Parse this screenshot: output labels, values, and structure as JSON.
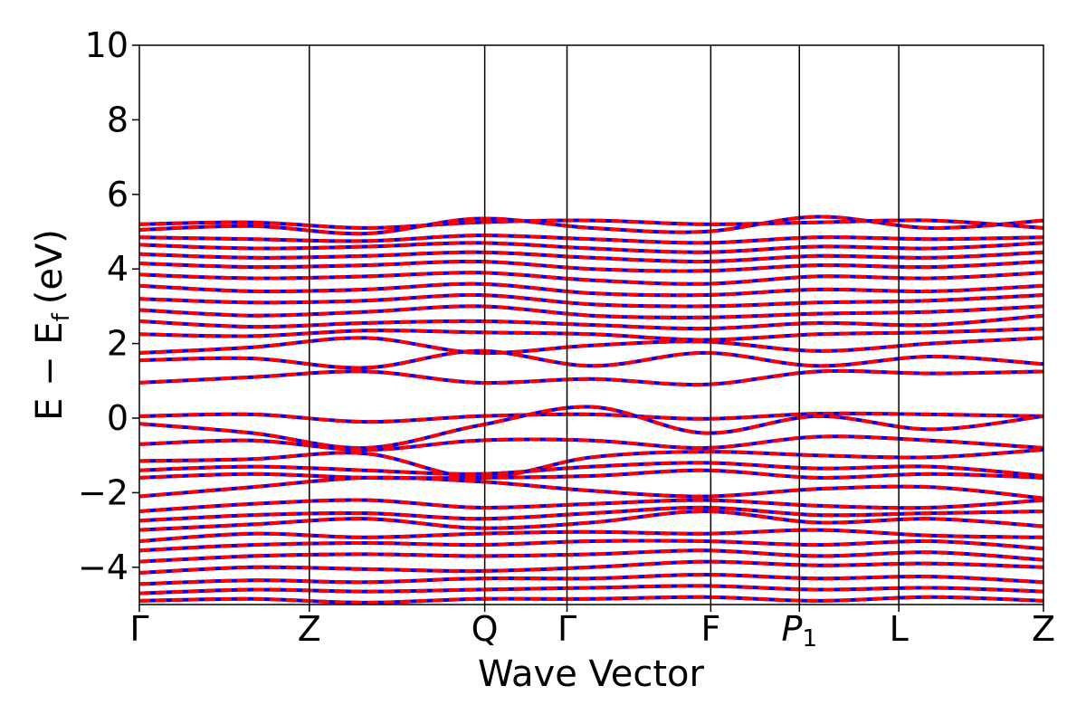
{
  "chart_data": {
    "type": "line",
    "xlabel": "Wave Vector",
    "ylabel": "E − E",
    "ylabel_sub": "f",
    "ylabel_unit": "(eV)",
    "ylim": [
      -5,
      10
    ],
    "yticks": [
      -4,
      -2,
      0,
      2,
      4,
      6,
      8,
      10
    ],
    "ytick_labels": [
      "−4",
      "−2",
      "0",
      "2",
      "4",
      "6",
      "8",
      "10"
    ],
    "xlim": [
      0,
      1
    ],
    "kpoints": [
      {
        "label": "Γ",
        "sub": "",
        "italic": false,
        "x": 0.0
      },
      {
        "label": "Z",
        "sub": "",
        "italic": false,
        "x": 0.188
      },
      {
        "label": "Q",
        "sub": "",
        "italic": false,
        "x": 0.382
      },
      {
        "label": "Γ",
        "sub": "",
        "italic": false,
        "x": 0.473
      },
      {
        "label": "F",
        "sub": "",
        "italic": false,
        "x": 0.632
      },
      {
        "label": "P",
        "sub": "1",
        "italic": true,
        "x": 0.73
      },
      {
        "label": "L",
        "sub": "",
        "italic": false,
        "x": 0.84
      },
      {
        "label": "Z",
        "sub": "",
        "italic": false,
        "x": 1.0
      }
    ],
    "grid": false,
    "series_styles": [
      {
        "color": "#0000ff",
        "linestyle": "solid"
      },
      {
        "color": "#ff0000",
        "linestyle": "dashed"
      }
    ],
    "bands_valence": [
      [
        0.05,
        0.1,
        -0.1,
        0.05,
        0.1,
        -0.02,
        0.12,
        0.1,
        0.05
      ],
      [
        -0.15,
        -0.4,
        -0.8,
        -0.2,
        0.3,
        -0.4,
        0.05,
        -0.3,
        0.05
      ],
      [
        -0.7,
        -0.6,
        -0.85,
        -0.6,
        -0.6,
        -0.8,
        -0.5,
        -0.6,
        -0.8
      ],
      [
        -1.15,
        -1.1,
        -0.95,
        -1.6,
        -1.05,
        -0.9,
        -1.0,
        -1.05,
        -0.85
      ],
      [
        -1.4,
        -1.3,
        -1.4,
        -1.5,
        -1.3,
        -1.2,
        -1.35,
        -1.3,
        -1.55
      ],
      [
        -1.6,
        -1.5,
        -1.6,
        -1.6,
        -1.55,
        -1.4,
        -1.6,
        -1.5,
        -1.6
      ],
      [
        -2.1,
        -1.85,
        -1.6,
        -1.7,
        -1.95,
        -2.1,
        -1.9,
        -1.85,
        -2.15
      ],
      [
        -2.5,
        -2.3,
        -2.2,
        -2.4,
        -2.3,
        -2.2,
        -2.35,
        -2.4,
        -2.2
      ],
      [
        -2.75,
        -2.6,
        -2.55,
        -2.7,
        -2.55,
        -2.4,
        -2.6,
        -2.55,
        -2.5
      ],
      [
        -3.0,
        -2.85,
        -2.7,
        -2.95,
        -2.8,
        -2.5,
        -2.8,
        -2.7,
        -2.9
      ],
      [
        -3.3,
        -3.1,
        -3.2,
        -3.1,
        -3.05,
        -3.1,
        -3.0,
        -3.15,
        -3.2
      ],
      [
        -3.55,
        -3.4,
        -3.35,
        -3.4,
        -3.3,
        -3.3,
        -3.4,
        -3.3,
        -3.5
      ],
      [
        -3.85,
        -3.7,
        -3.65,
        -3.7,
        -3.65,
        -3.55,
        -3.7,
        -3.6,
        -3.8
      ],
      [
        -4.15,
        -4.0,
        -4.05,
        -4.1,
        -4.0,
        -3.85,
        -3.95,
        -3.9,
        -4.0
      ],
      [
        -4.45,
        -4.35,
        -4.4,
        -4.3,
        -4.3,
        -4.2,
        -4.3,
        -4.25,
        -4.4
      ],
      [
        -4.7,
        -4.6,
        -4.65,
        -4.6,
        -4.55,
        -4.5,
        -4.6,
        -4.55,
        -4.65
      ],
      [
        -4.9,
        -4.85,
        -4.95,
        -4.85,
        -4.85,
        -4.8,
        -4.9,
        -4.8,
        -4.9
      ]
    ],
    "bands_conduction": [
      [
        0.95,
        1.1,
        1.25,
        0.95,
        1.05,
        0.9,
        1.25,
        1.2,
        1.25
      ],
      [
        1.55,
        1.6,
        1.35,
        1.8,
        1.4,
        1.75,
        1.4,
        1.65,
        1.45
      ],
      [
        1.75,
        1.9,
        2.15,
        1.75,
        1.95,
        2.05,
        1.8,
        2.0,
        2.15
      ],
      [
        2.25,
        2.2,
        2.35,
        2.3,
        2.25,
        2.1,
        2.25,
        2.3,
        2.4
      ],
      [
        2.6,
        2.45,
        2.55,
        2.6,
        2.5,
        2.4,
        2.55,
        2.5,
        2.75
      ],
      [
        2.9,
        2.75,
        2.85,
        3.0,
        2.75,
        2.7,
        2.8,
        2.85,
        3.0
      ],
      [
        3.2,
        3.1,
        3.15,
        3.3,
        3.05,
        3.0,
        3.1,
        3.15,
        3.3
      ],
      [
        3.55,
        3.4,
        3.45,
        3.6,
        3.35,
        3.3,
        3.45,
        3.4,
        3.55
      ],
      [
        3.85,
        3.75,
        3.8,
        3.9,
        3.7,
        3.6,
        3.8,
        3.75,
        3.9
      ],
      [
        4.15,
        4.05,
        4.1,
        4.2,
        4.0,
        3.95,
        4.1,
        4.05,
        4.2
      ],
      [
        4.4,
        4.3,
        4.35,
        4.45,
        4.3,
        4.2,
        4.35,
        4.3,
        4.45
      ],
      [
        4.65,
        4.55,
        4.6,
        4.7,
        4.55,
        4.45,
        4.6,
        4.55,
        4.7
      ],
      [
        4.85,
        4.8,
        4.75,
        4.9,
        4.8,
        4.7,
        4.85,
        4.8,
        4.85
      ],
      [
        5.05,
        5.15,
        4.95,
        5.35,
        5.1,
        5.0,
        5.4,
        5.1,
        5.3
      ],
      [
        5.2,
        5.25,
        5.1,
        5.25,
        5.3,
        5.2,
        5.25,
        5.3,
        5.1
      ]
    ]
  }
}
